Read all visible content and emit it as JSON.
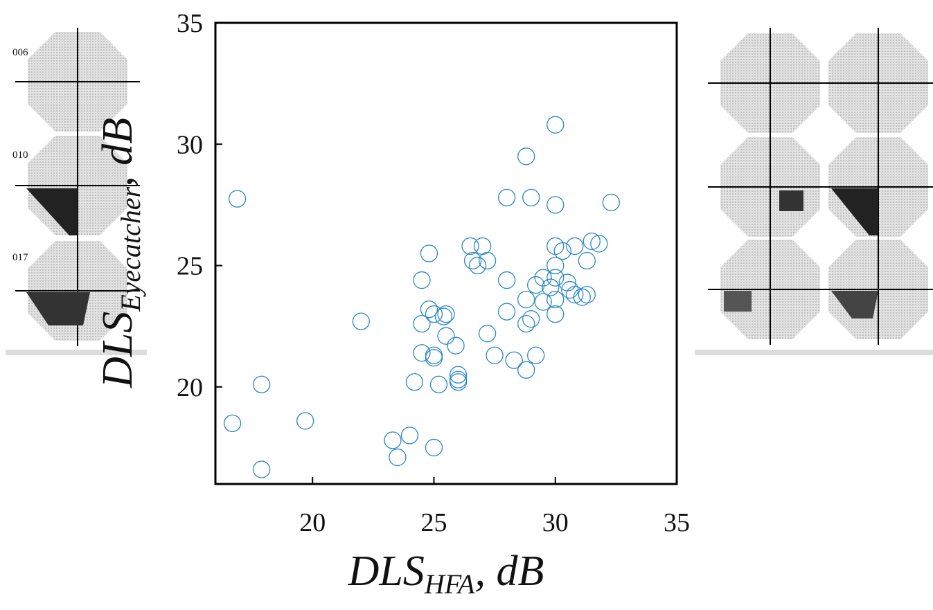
{
  "chart_data": {
    "type": "scatter",
    "x_label": [
      "DLS",
      "HFA",
      ", dB"
    ],
    "y_label": [
      "DLS",
      "Eyecatcher",
      ", dB"
    ],
    "color": "#2a87c8",
    "xlim": [
      16,
      35
    ],
    "ylim": [
      16,
      35
    ],
    "xticks": [
      20,
      25,
      30,
      35
    ],
    "yticks": [
      20,
      25,
      30,
      35
    ],
    "grid": false,
    "x": [
      16.9,
      16.7,
      17.9,
      17.9,
      19.7,
      22.0,
      23.3,
      23.5,
      24.0,
      25.0,
      24.2,
      24.5,
      24.8,
      24.5,
      24.5,
      24.8,
      25.0,
      25.0,
      25.0,
      25.2,
      25.4,
      25.5,
      25.5,
      25.9,
      26.0,
      26.0,
      26.0,
      26.5,
      26.6,
      26.8,
      27.0,
      27.2,
      27.2,
      27.5,
      28.0,
      28.0,
      28.0,
      28.3,
      28.8,
      28.8,
      28.8,
      28.8,
      29.0,
      29.0,
      29.2,
      29.2,
      29.5,
      29.5,
      29.8,
      30.0,
      30.0,
      30.0,
      30.0,
      30.0,
      30.0,
      30.0,
      30.3,
      30.5,
      30.6,
      30.8,
      30.8,
      31.1,
      31.3,
      31.3,
      31.5,
      31.8,
      32.3
    ],
    "values": [
      27.75,
      18.5,
      20.1,
      16.6,
      18.6,
      22.7,
      17.8,
      17.1,
      18.0,
      17.5,
      20.2,
      24.4,
      25.5,
      22.6,
      21.4,
      23.2,
      23.0,
      21.3,
      21.2,
      20.1,
      22.9,
      23.0,
      22.1,
      21.7,
      20.5,
      20.3,
      20.2,
      25.8,
      25.2,
      25.0,
      25.8,
      25.2,
      22.2,
      21.3,
      27.8,
      24.4,
      23.1,
      21.1,
      29.5,
      20.7,
      23.6,
      22.6,
      27.8,
      22.8,
      21.3,
      24.2,
      24.5,
      23.5,
      24.1,
      30.8,
      27.5,
      25.8,
      25.0,
      24.5,
      23.6,
      23.0,
      25.6,
      24.3,
      24.0,
      25.8,
      23.8,
      23.7,
      25.2,
      23.8,
      26.0,
      25.9,
      27.6
    ]
  },
  "panel_labels": [
    "006",
    "010",
    "017"
  ]
}
